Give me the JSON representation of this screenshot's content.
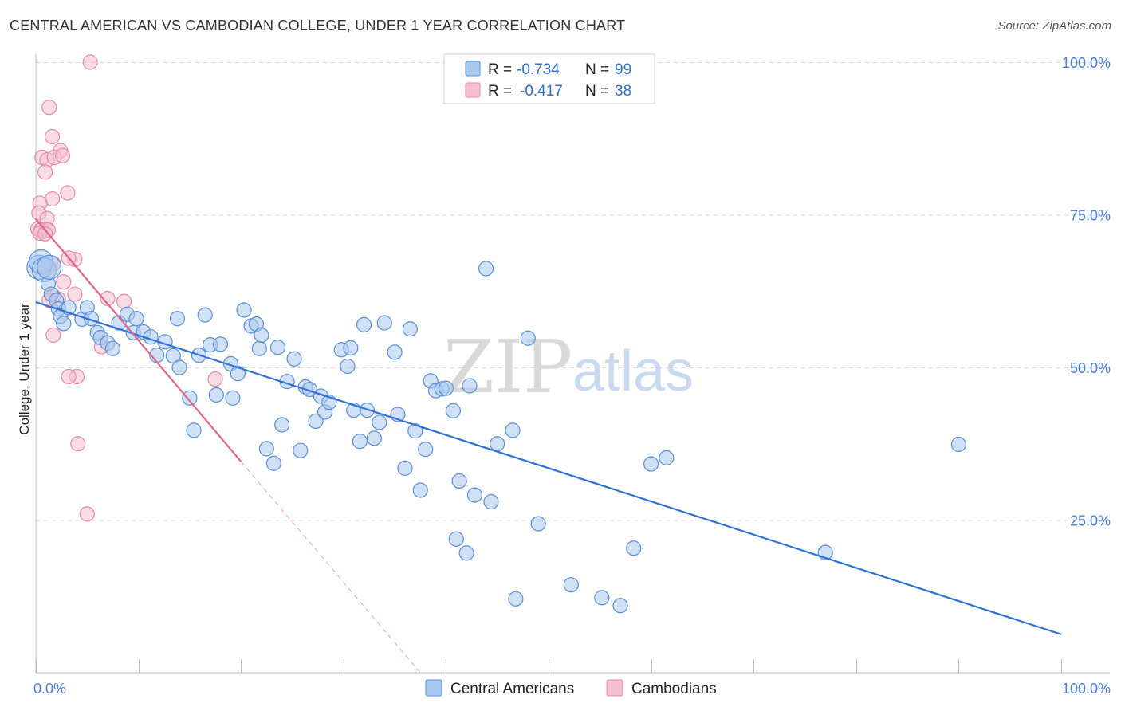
{
  "header": {
    "title": "CENTRAL AMERICAN VS CAMBODIAN COLLEGE, UNDER 1 YEAR CORRELATION CHART",
    "source": "Source: ZipAtlas.com"
  },
  "watermark": {
    "zip": "ZIP",
    "atlas": "atlas"
  },
  "colors": {
    "blue_fill": "#a9c8ee",
    "blue_stroke": "#5b8fd6",
    "blue_line": "#2f72d4",
    "pink_fill": "#f6bfd0",
    "pink_stroke": "#e58aa8",
    "pink_line": "#e0648e",
    "grid": "#d8d8d8",
    "tick_text": "#4a7fd6"
  },
  "legend": {
    "rows": [
      {
        "r_label": "R =",
        "r_value": "-0.734",
        "n_label": "N =",
        "n_value": "99",
        "series": "blue"
      },
      {
        "r_label": "R =",
        "r_value": "-0.417",
        "n_label": "N =",
        "n_value": "38",
        "series": "pink"
      }
    ]
  },
  "chart_data": {
    "type": "scatter",
    "title": "CENTRAL AMERICAN VS CAMBODIAN COLLEGE, UNDER 1 YEAR CORRELATION CHART",
    "xlabel": "",
    "ylabel": "College, Under 1 year",
    "xlim": [
      0,
      100
    ],
    "ylim": [
      0,
      100
    ],
    "x_tick_labels": [
      "0.0%",
      "100.0%"
    ],
    "y_tick_values": [
      25,
      50,
      75,
      100
    ],
    "y_tick_labels": [
      "25.0%",
      "50.0%",
      "75.0%",
      "100.0%"
    ],
    "legend_position": "top-center",
    "series": [
      {
        "name": "Central Americans",
        "color": "blue",
        "trend": {
          "x0": 0,
          "y0": 60.7,
          "x1": 100,
          "y1": 6.3
        },
        "points": [
          [
            0.3,
            66.4
          ],
          [
            0.5,
            67.3
          ],
          [
            0.8,
            66.0
          ],
          [
            1.2,
            63.7
          ],
          [
            1.3,
            66.4
          ],
          [
            1.5,
            62.0
          ],
          [
            2.0,
            61.0
          ],
          [
            2.2,
            59.6
          ],
          [
            2.4,
            58.4
          ],
          [
            2.7,
            57.2
          ],
          [
            3.2,
            59.8
          ],
          [
            4.5,
            57.9
          ],
          [
            5.0,
            59.8
          ],
          [
            5.4,
            58.0
          ],
          [
            6.0,
            55.7
          ],
          [
            6.3,
            54.9
          ],
          [
            7.0,
            54.0
          ],
          [
            7.5,
            53.1
          ],
          [
            8.1,
            57.3
          ],
          [
            8.9,
            58.7
          ],
          [
            9.5,
            55.7
          ],
          [
            9.8,
            58.0
          ],
          [
            10.5,
            55.8
          ],
          [
            11.2,
            55.0
          ],
          [
            11.8,
            52.0
          ],
          [
            12.6,
            54.2
          ],
          [
            13.4,
            51.9
          ],
          [
            13.8,
            58.0
          ],
          [
            14.0,
            50.0
          ],
          [
            15.0,
            45.0
          ],
          [
            15.4,
            39.7
          ],
          [
            15.9,
            52.0
          ],
          [
            16.5,
            58.6
          ],
          [
            17.0,
            53.7
          ],
          [
            17.6,
            45.5
          ],
          [
            18.0,
            53.8
          ],
          [
            19.0,
            50.6
          ],
          [
            19.2,
            45.0
          ],
          [
            19.7,
            49.0
          ],
          [
            20.3,
            59.4
          ],
          [
            21.0,
            56.8
          ],
          [
            21.5,
            57.1
          ],
          [
            21.8,
            53.1
          ],
          [
            22.0,
            55.3
          ],
          [
            22.5,
            36.7
          ],
          [
            23.2,
            34.3
          ],
          [
            23.6,
            53.3
          ],
          [
            24.0,
            40.6
          ],
          [
            24.5,
            47.7
          ],
          [
            25.2,
            51.4
          ],
          [
            25.8,
            36.4
          ],
          [
            26.3,
            46.8
          ],
          [
            26.7,
            46.4
          ],
          [
            27.3,
            41.2
          ],
          [
            27.8,
            45.3
          ],
          [
            28.2,
            42.7
          ],
          [
            28.6,
            44.3
          ],
          [
            29.8,
            52.9
          ],
          [
            30.4,
            50.2
          ],
          [
            30.7,
            53.2
          ],
          [
            31.0,
            43.0
          ],
          [
            31.6,
            37.9
          ],
          [
            32.0,
            57.0
          ],
          [
            32.3,
            43.0
          ],
          [
            33.0,
            38.4
          ],
          [
            33.5,
            41.0
          ],
          [
            34.0,
            57.3
          ],
          [
            35.0,
            52.5
          ],
          [
            35.3,
            42.3
          ],
          [
            36.0,
            33.5
          ],
          [
            36.5,
            56.3
          ],
          [
            37.0,
            39.6
          ],
          [
            37.5,
            29.9
          ],
          [
            38.0,
            36.6
          ],
          [
            38.5,
            47.8
          ],
          [
            39.0,
            46.2
          ],
          [
            39.6,
            46.5
          ],
          [
            40.0,
            46.6
          ],
          [
            40.7,
            42.9
          ],
          [
            41.0,
            21.9
          ],
          [
            41.3,
            31.4
          ],
          [
            42.0,
            19.6
          ],
          [
            42.3,
            47.0
          ],
          [
            42.8,
            29.1
          ],
          [
            43.9,
            66.2
          ],
          [
            44.4,
            28.0
          ],
          [
            45.0,
            37.5
          ],
          [
            46.5,
            39.7
          ],
          [
            46.8,
            12.1
          ],
          [
            48.0,
            54.8
          ],
          [
            49.0,
            24.4
          ],
          [
            52.2,
            14.4
          ],
          [
            55.2,
            12.3
          ],
          [
            57.0,
            11.0
          ],
          [
            58.3,
            20.4
          ],
          [
            60.0,
            34.2
          ],
          [
            61.5,
            35.2
          ],
          [
            77.0,
            19.7
          ],
          [
            90.0,
            37.4
          ]
        ]
      },
      {
        "name": "Cambodians",
        "color": "pink",
        "trend": {
          "x0": 0,
          "y0": 74.3,
          "x1": 20,
          "y1": 34.6,
          "dash_x1": 37.5,
          "dash_y1": 0
        },
        "points": [
          [
            5.3,
            100.0
          ],
          [
            1.3,
            92.6
          ],
          [
            1.6,
            87.8
          ],
          [
            2.4,
            85.5
          ],
          [
            0.6,
            84.4
          ],
          [
            1.1,
            84.0
          ],
          [
            1.8,
            84.4
          ],
          [
            2.6,
            84.7
          ],
          [
            0.9,
            82.0
          ],
          [
            3.1,
            78.6
          ],
          [
            1.6,
            77.6
          ],
          [
            0.4,
            76.9
          ],
          [
            0.3,
            75.3
          ],
          [
            1.1,
            74.4
          ],
          [
            0.2,
            72.7
          ],
          [
            0.5,
            72.5
          ],
          [
            1.0,
            72.6
          ],
          [
            1.2,
            72.5
          ],
          [
            0.4,
            72.0
          ],
          [
            0.9,
            71.9
          ],
          [
            3.8,
            67.7
          ],
          [
            3.2,
            67.9
          ],
          [
            1.7,
            67.0
          ],
          [
            1.1,
            66.3
          ],
          [
            2.7,
            64.0
          ],
          [
            3.8,
            62.0
          ],
          [
            1.7,
            61.7
          ],
          [
            2.2,
            61.2
          ],
          [
            1.3,
            61.0
          ],
          [
            7.0,
            61.3
          ],
          [
            8.6,
            60.8
          ],
          [
            1.7,
            55.3
          ],
          [
            6.4,
            53.4
          ],
          [
            4.0,
            48.5
          ],
          [
            3.2,
            48.5
          ],
          [
            17.5,
            48.1
          ],
          [
            4.1,
            37.5
          ],
          [
            5.0,
            26.0
          ]
        ]
      }
    ]
  },
  "bottom_legend": {
    "items": [
      {
        "label": "Central Americans",
        "series": "blue"
      },
      {
        "label": "Cambodians",
        "series": "pink"
      }
    ]
  }
}
